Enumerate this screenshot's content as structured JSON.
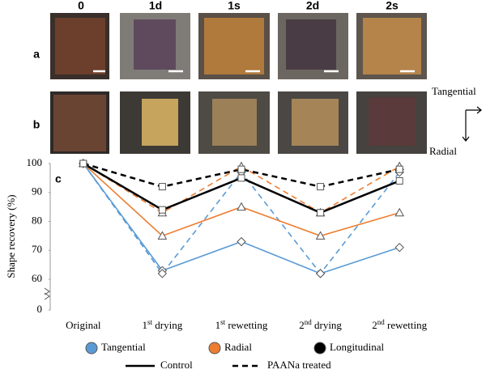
{
  "photos": {
    "columns": [
      "0",
      "1d",
      "1s",
      "2d",
      "2s"
    ],
    "rows": [
      "a",
      "b"
    ],
    "directions": [
      "Tangential",
      "Radial"
    ]
  },
  "chart_data": {
    "type": "line",
    "panel": "c",
    "ylabel": "Shape recovery (%)",
    "categories": [
      "Original",
      "1st drying",
      "1st rewetting",
      "2nd drying",
      "2nd rewetting"
    ],
    "ylim": [
      0,
      100
    ],
    "yticks": [
      0,
      60,
      70,
      80,
      90,
      100
    ],
    "axis_break": true,
    "groups": [
      {
        "name": "Tangential",
        "color": "#5b9bd5",
        "marker": "diamond",
        "series": [
          {
            "style": "solid",
            "values": [
              100,
              63,
              73,
              62,
              71
            ]
          },
          {
            "style": "dashed",
            "values": [
              100,
              62,
              97,
              62,
              97
            ]
          }
        ]
      },
      {
        "name": "Radial",
        "color": "#ed7d31",
        "marker": "triangle",
        "series": [
          {
            "style": "solid",
            "values": [
              100,
              75,
              85,
              75,
              83
            ]
          },
          {
            "style": "dashed",
            "values": [
              100,
              83,
              99,
              83,
              99
            ]
          }
        ]
      },
      {
        "name": "Longitudinal",
        "color": "#000000",
        "marker": "square",
        "series": [
          {
            "style": "solid",
            "values": [
              100,
              84,
              95,
              83,
              94
            ]
          },
          {
            "style": "dashed",
            "values": [
              100,
              92,
              98,
              92,
              98
            ]
          }
        ]
      }
    ],
    "line_styles": [
      {
        "name": "Control",
        "style": "solid"
      },
      {
        "name": "PAANa treated",
        "style": "dashed"
      }
    ]
  }
}
